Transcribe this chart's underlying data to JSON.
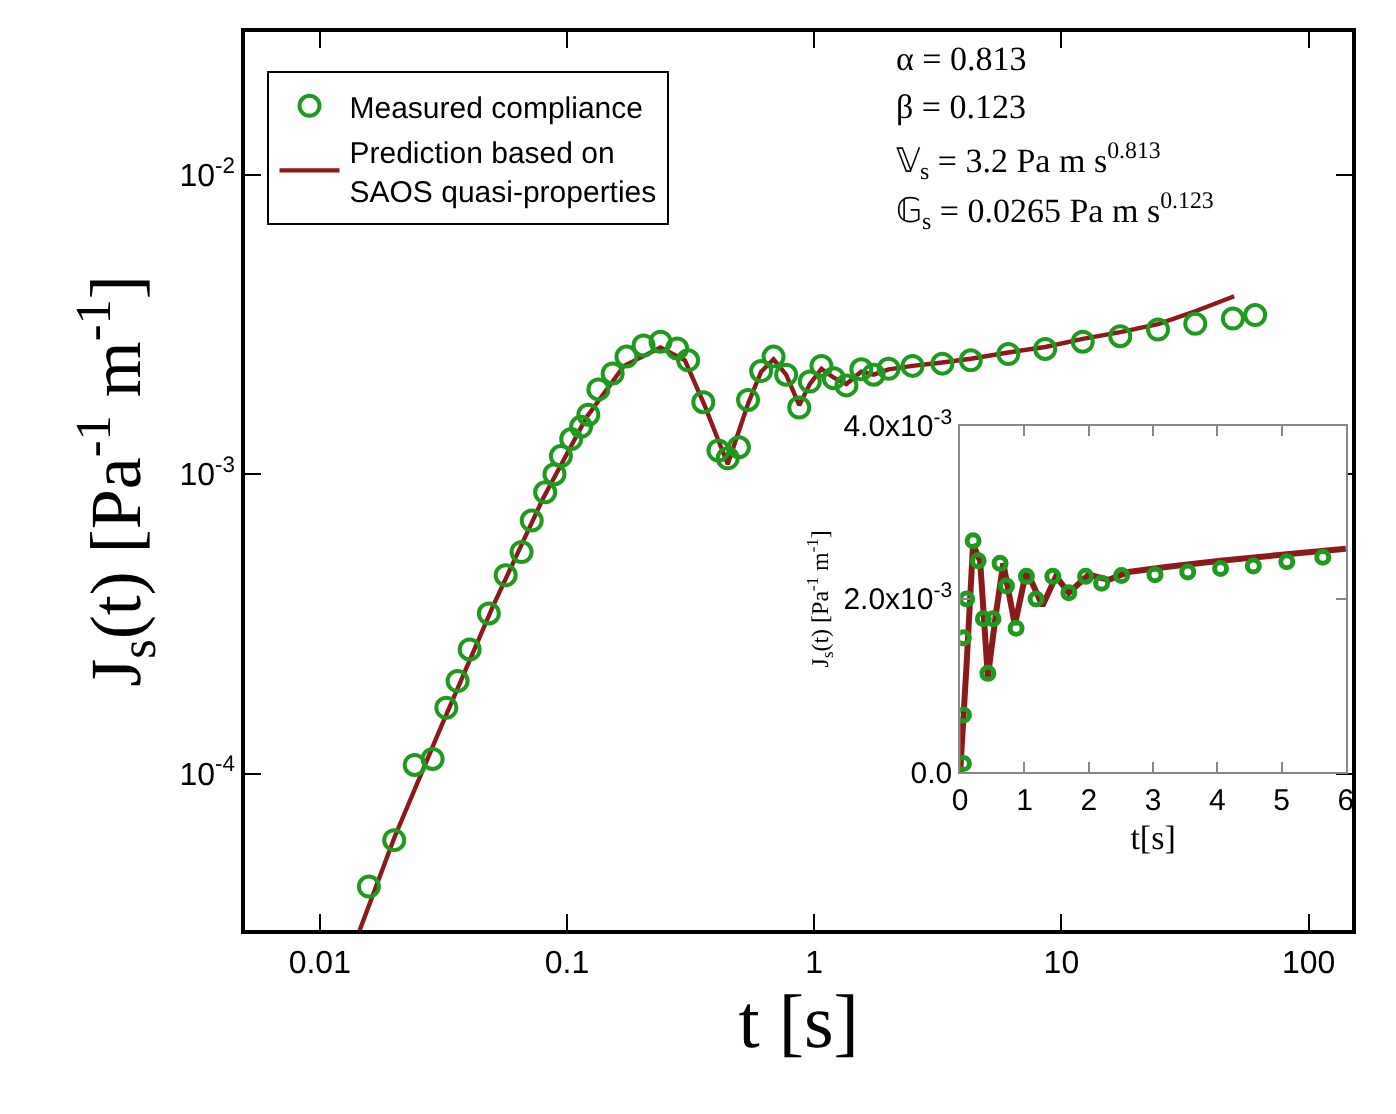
{
  "chart_data": [
    {
      "type": "scatter",
      "xlabel": "t [s]",
      "ylabel": "J$_{s}$(t) [Pa$^{-1}$ m$^{-1}$]",
      "log": "xy",
      "legend": "top left",
      "xlim": [
        0.005,
        150
      ],
      "xticks": [
        0.01,
        0.1,
        1,
        10,
        100
      ],
      "ylim": [
        3e-05,
        0.03
      ],
      "yticks": [
        {
          "value": 0.0001,
          "label": "10$^{-4}$"
        },
        {
          "value": 0.001,
          "label": "10$^{-3}$"
        },
        {
          "value": 0.01,
          "label": "10$^{-2}$"
        }
      ],
      "annotations": [
        "α = 0.813",
        "β = 0.123",
        "𝕍$_{s}$ = 3.2 Pa m s$^{0.813}$",
        "𝔾$_{s}$ = 0.0265 Pa m s$^{0.123}$"
      ],
      "series": [
        {
          "name": "Measured compliance",
          "marker": "circle",
          "color": "#1e9a1e",
          "x": [
            0.0158,
            0.02,
            0.0242,
            0.0286,
            0.0325,
            0.0361,
            0.0404,
            0.0483,
            0.0565,
            0.0655,
            0.072,
            0.0816,
            0.089,
            0.0945,
            0.104,
            0.114,
            0.122,
            0.134,
            0.153,
            0.174,
            0.204,
            0.239,
            0.279,
            0.309,
            0.356,
            0.41,
            0.447,
            0.496,
            0.54,
            0.61,
            0.685,
            0.77,
            0.87,
            0.96,
            1.07,
            1.2,
            1.35,
            1.55,
            1.74,
            2.0,
            2.5,
            3.3,
            4.3,
            6.1,
            8.6,
            12.2,
            17.3,
            24.6,
            34.8,
            49.4,
            60.8
          ],
          "values": [
            4.2e-05,
            6e-05,
            0.000107,
            0.000112,
            0.000166,
            0.000204,
            0.00026,
            0.000343,
            0.00046,
            0.00055,
            0.0007,
            0.00087,
            0.001,
            0.00115,
            0.00131,
            0.00144,
            0.00158,
            0.00192,
            0.00217,
            0.00247,
            0.00269,
            0.00277,
            0.00263,
            0.0024,
            0.00174,
            0.0012,
            0.00113,
            0.00123,
            0.00177,
            0.00221,
            0.00247,
            0.00215,
            0.00167,
            0.00204,
            0.0023,
            0.00209,
            0.00198,
            0.00224,
            0.00215,
            0.00225,
            0.0023,
            0.00234,
            0.0024,
            0.00252,
            0.00262,
            0.00277,
            0.00289,
            0.00304,
            0.00318,
            0.00331,
            0.0034
          ]
        },
        {
          "name": "Prediction based on\nSAOS quasi-properties",
          "type": "line",
          "marker": "none",
          "line_style": "solid",
          "color": "#8b1a1a",
          "x": [
            0.0145,
            0.02,
            0.03,
            0.05,
            0.08,
            0.12,
            0.17,
            0.239,
            0.3,
            0.36,
            0.447,
            0.54,
            0.61,
            0.685,
            0.77,
            0.87,
            0.96,
            1.07,
            1.2,
            1.35,
            1.55,
            1.74,
            2.0,
            2.5,
            3.3,
            4.3,
            6.1,
            8.6,
            12.2,
            17.3,
            24.6,
            34.8,
            50
          ],
          "values": [
            3e-05,
            6.1e-05,
            0.000135,
            0.00036,
            0.00083,
            0.00155,
            0.0023,
            0.00265,
            0.0024,
            0.0017,
            0.00108,
            0.00172,
            0.0022,
            0.00242,
            0.00215,
            0.0017,
            0.002,
            0.00225,
            0.0021,
            0.002,
            0.0022,
            0.00215,
            0.00224,
            0.0023,
            0.00236,
            0.00243,
            0.00255,
            0.00266,
            0.00283,
            0.00298,
            0.00317,
            0.0035,
            0.00393
          ]
        }
      ]
    },
    {
      "type": "scatter",
      "xlabel": "t[s]",
      "ylabel": "J$_{s}$(t) [Pa$^{-1}$ m$^{-1}$]",
      "legend": false,
      "xlim": [
        0,
        6
      ],
      "xticks": [
        0,
        1,
        2,
        3,
        4,
        5,
        6
      ],
      "ylim": [
        0,
        0.004
      ],
      "yticks": [
        {
          "value": 0,
          "label": "0.0"
        },
        {
          "value": 0.002,
          "label": "2.0x10$^{-3}$"
        },
        {
          "value": 0.004,
          "label": "4.0x10$^{-3}$"
        }
      ],
      "series": [
        {
          "marker": "circle",
          "color": "#1e9a1e",
          "x": [
            0.05,
            0.05,
            0.05,
            0.1,
            0.2,
            0.28,
            0.36,
            0.43,
            0.51,
            0.62,
            0.72,
            0.87,
            1.03,
            1.18,
            1.44,
            1.69,
            1.95,
            2.2,
            2.51,
            3.03,
            3.54,
            4.05,
            4.56,
            5.08,
            5.64
          ],
          "values": [
            0.0001,
            0.00066,
            0.00155,
            0.002,
            0.00267,
            0.00244,
            0.00177,
            0.00114,
            0.00177,
            0.00241,
            0.00215,
            0.00166,
            0.00226,
            0.002,
            0.00226,
            0.00207,
            0.00226,
            0.00218,
            0.00227,
            0.00228,
            0.00231,
            0.00235,
            0.00238,
            0.00243,
            0.00248
          ]
        },
        {
          "type": "line",
          "marker": "none",
          "line_style": "solid",
          "color": "#8b1a1a",
          "x": [
            0,
            0.1,
            0.2,
            0.31,
            0.43,
            0.56,
            0.67,
            0.85,
            1.03,
            1.28,
            1.49,
            1.69,
            2.0,
            2.31,
            2.62,
            3.23,
            4.05,
            4.87,
            6.0
          ],
          "values": [
            0,
            0.00125,
            0.00263,
            0.00244,
            0.0011,
            0.00185,
            0.00241,
            0.0017,
            0.00233,
            0.00192,
            0.00226,
            0.00207,
            0.00228,
            0.00222,
            0.00231,
            0.00237,
            0.00244,
            0.0025,
            0.00258
          ]
        }
      ]
    }
  ]
}
